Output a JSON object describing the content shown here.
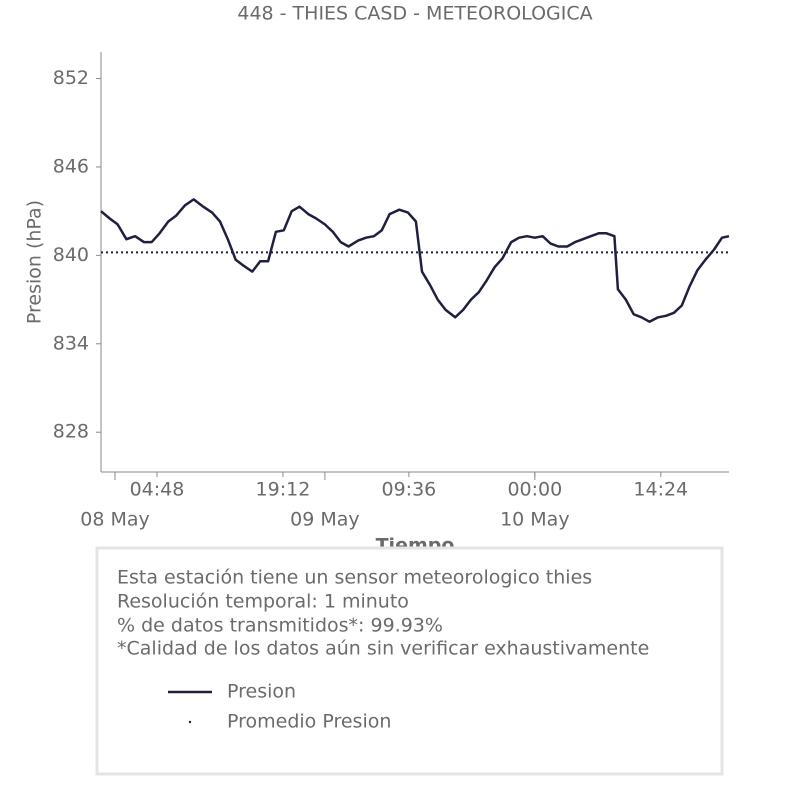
{
  "chart_data": {
    "type": "line",
    "title": "448 - THIES CASD - METEOROLOGICA",
    "xlabel": "Tiempo",
    "ylabel": "Presion (hPa)",
    "x": [
      -1.6,
      -0.6,
      0.3,
      1.3,
      2.3,
      3.3,
      4.2,
      5.1,
      6.1,
      7.0,
      8.0,
      9.0,
      10.1,
      11.1,
      12.0,
      12.9,
      13.8,
      14.7,
      15.7,
      16.6,
      17.5,
      18.4,
      19.3,
      20.2,
      21.1,
      22.1,
      23.0,
      24.0,
      24.9,
      25.8,
      26.7,
      27.8,
      28.7,
      29.6,
      30.5,
      31.4,
      32.5,
      33.5,
      34.4,
      35.1,
      36.0,
      36.9,
      37.8,
      38.9,
      39.8,
      40.7,
      41.6,
      42.5,
      43.4,
      44.3,
      45.3,
      46.2,
      47.1,
      48.0,
      48.9,
      49.8,
      50.7,
      51.7,
      52.6,
      53.5,
      54.4,
      55.3,
      56.2,
      57.1,
      57.5,
      58.4,
      59.3,
      60.2,
      61.1,
      62.1,
      63.0,
      63.9,
      64.8,
      65.7,
      66.6,
      67.5,
      68.5,
      69.4,
      70.2
    ],
    "series": [
      {
        "name": "Presion",
        "color": "#1f2041",
        "values": [
          843.0,
          842.5,
          842.1,
          841.1,
          841.3,
          840.9,
          840.9,
          841.5,
          842.3,
          842.7,
          843.4,
          843.8,
          843.3,
          842.9,
          842.3,
          841.1,
          839.7,
          839.3,
          838.9,
          839.6,
          839.6,
          841.6,
          841.7,
          843.0,
          843.3,
          842.8,
          842.5,
          842.1,
          841.6,
          840.9,
          840.6,
          841.0,
          841.2,
          841.3,
          841.7,
          842.8,
          843.1,
          842.9,
          842.3,
          838.9,
          838.0,
          837.0,
          836.3,
          835.8,
          836.3,
          837.0,
          837.5,
          838.3,
          839.2,
          839.8,
          840.9,
          841.2,
          841.3,
          841.2,
          841.3,
          840.8,
          840.6,
          840.6,
          840.9,
          841.1,
          841.3,
          841.5,
          841.5,
          841.3,
          837.7,
          837.0,
          836.0,
          835.8,
          835.5,
          835.8,
          835.9,
          836.1,
          836.6,
          837.9,
          839.0,
          839.7,
          840.4,
          841.2,
          841.3
        ]
      }
    ],
    "mean": {
      "name": "Promedio Presion",
      "value": 840.2,
      "color": "#1f2041"
    },
    "xlim": [
      -1.6,
      70.2
    ],
    "ylim": [
      825.3,
      853.8
    ],
    "yticks": [
      828,
      834,
      840,
      846,
      852
    ],
    "xticks": [
      {
        "value": 4.8,
        "label": "04:48"
      },
      {
        "value": 19.2,
        "label": "19:12"
      },
      {
        "value": 33.6,
        "label": "09:36"
      },
      {
        "value": 48,
        "label": "00:00"
      },
      {
        "value": 62.4,
        "label": "14:24"
      }
    ],
    "xticks_major": [
      {
        "value": 0,
        "label": "08 May"
      },
      {
        "value": 24,
        "label": "09 May"
      },
      {
        "value": 48,
        "label": "10 May"
      }
    ],
    "grid": false
  },
  "info_box": {
    "lines": [
      "Esta estación tiene un sensor meteorologico thies",
      "Resolución temporal: 1 minuto",
      "% de datos transmitidos*: 99.93%",
      "*Calidad de los datos aún sin verificar exhaustivamente"
    ]
  }
}
